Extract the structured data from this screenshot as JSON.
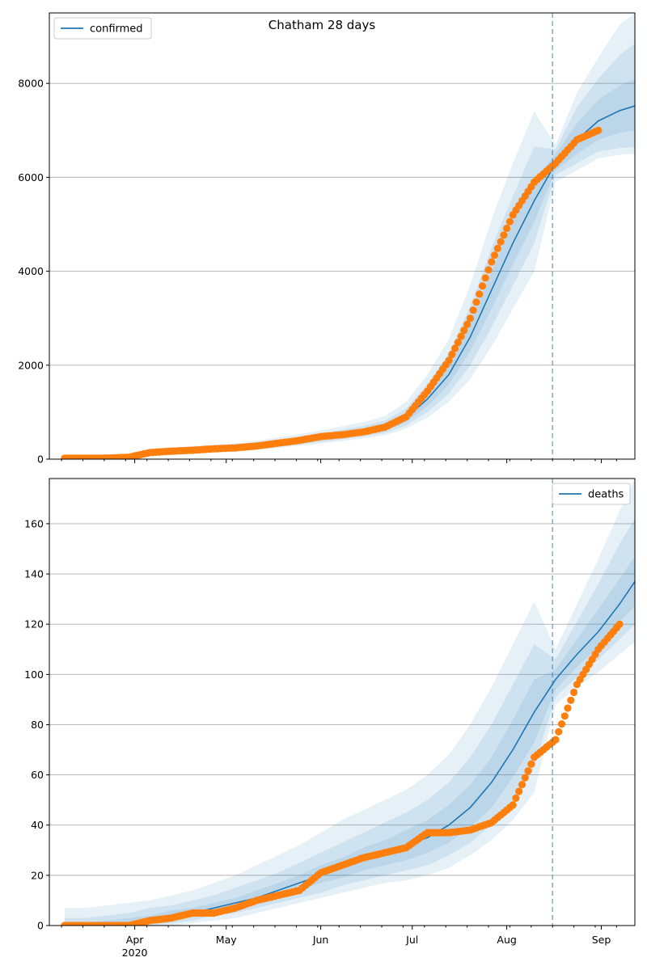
{
  "chart_data": [
    {
      "type": "line",
      "title": "Chatham 28 days",
      "x_dates": [
        "2020-03-09",
        "2020-03-16",
        "2020-03-23",
        "2020-03-30",
        "2020-04-06",
        "2020-04-13",
        "2020-04-20",
        "2020-04-27",
        "2020-05-04",
        "2020-05-11",
        "2020-05-18",
        "2020-05-25",
        "2020-06-01",
        "2020-06-08",
        "2020-06-15",
        "2020-06-22",
        "2020-06-29",
        "2020-07-06",
        "2020-07-13",
        "2020-07-20",
        "2020-07-27",
        "2020-08-03",
        "2020-08-10",
        "2020-08-17",
        "2020-08-24",
        "2020-08-31",
        "2020-09-07",
        "2020-09-12"
      ],
      "xlim": [
        "2020-03-04",
        "2020-09-12"
      ],
      "ylim": [
        0,
        9500
      ],
      "yticks": [
        0,
        2000,
        4000,
        6000,
        8000
      ],
      "xtick_labels": [
        "Apr\n2020",
        "May",
        "Jun",
        "Jul",
        "Aug",
        "Sep"
      ],
      "grid": "horizontal",
      "legend": {
        "position": "top-left"
      },
      "forecast_start": "2020-08-16",
      "series": [
        {
          "name": "confirmed",
          "kind": "model-median",
          "color": "#1f77b4",
          "values": [
            0,
            5,
            20,
            60,
            120,
            160,
            190,
            210,
            240,
            280,
            330,
            390,
            450,
            520,
            590,
            680,
            880,
            1280,
            1800,
            2600,
            3600,
            4600,
            5500,
            6300,
            6800,
            7200,
            7420,
            7520
          ]
        },
        {
          "name": "band_50",
          "kind": "uncertainty",
          "color": "#1f77b4",
          "lower": [
            0,
            4,
            16,
            50,
            100,
            135,
            165,
            185,
            215,
            250,
            295,
            350,
            405,
            470,
            535,
            615,
            790,
            1130,
            1590,
            2300,
            3200,
            4150,
            5050,
            6150,
            6500,
            6800,
            6950,
            7000
          ],
          "upper": [
            0,
            6,
            24,
            70,
            140,
            185,
            215,
            240,
            265,
            310,
            365,
            430,
            495,
            570,
            645,
            745,
            970,
            1430,
            2010,
            2900,
            4000,
            5050,
            5950,
            6500,
            7150,
            7650,
            7950,
            8100
          ]
        },
        {
          "name": "band_80",
          "kind": "uncertainty",
          "color": "#1f77b4",
          "lower": [
            0,
            3,
            13,
            42,
            85,
            115,
            145,
            165,
            190,
            225,
            265,
            315,
            365,
            425,
            485,
            560,
            720,
            1000,
            1400,
            2000,
            2800,
            3700,
            4600,
            6050,
            6300,
            6550,
            6620,
            6650
          ],
          "upper": [
            0,
            8,
            28,
            80,
            160,
            210,
            245,
            270,
            295,
            345,
            405,
            475,
            545,
            625,
            710,
            820,
            1080,
            1600,
            2250,
            3250,
            4500,
            5600,
            6650,
            6600,
            7500,
            8100,
            8600,
            8850
          ]
        },
        {
          "name": "band_95",
          "kind": "uncertainty",
          "color": "#1f77b4",
          "lower": [
            0,
            2,
            10,
            35,
            70,
            95,
            125,
            145,
            170,
            200,
            240,
            285,
            330,
            385,
            440,
            510,
            650,
            880,
            1220,
            1700,
            2400,
            3200,
            4000,
            5900,
            6150,
            6400,
            6480,
            6500
          ],
          "upper": [
            0,
            10,
            34,
            95,
            185,
            240,
            280,
            305,
            335,
            390,
            460,
            535,
            610,
            700,
            790,
            915,
            1220,
            1800,
            2550,
            3700,
            5100,
            6300,
            7400,
            6700,
            7800,
            8550,
            9250,
            9500
          ]
        },
        {
          "name": "observed",
          "kind": "points",
          "color": "#ff7f0e",
          "values": [
            20,
            20,
            22,
            40,
            140,
            170,
            190,
            220,
            240,
            280,
            340,
            400,
            480,
            520,
            580,
            680,
            900,
            1450,
            2100,
            3000,
            4200,
            5200,
            5900,
            6300,
            6800,
            7000,
            null,
            null
          ]
        }
      ]
    },
    {
      "type": "line",
      "x_dates": [
        "2020-03-09",
        "2020-03-16",
        "2020-03-23",
        "2020-03-30",
        "2020-04-06",
        "2020-04-13",
        "2020-04-20",
        "2020-04-27",
        "2020-05-04",
        "2020-05-11",
        "2020-05-18",
        "2020-05-25",
        "2020-06-01",
        "2020-06-08",
        "2020-06-15",
        "2020-06-22",
        "2020-06-29",
        "2020-07-06",
        "2020-07-13",
        "2020-07-20",
        "2020-07-27",
        "2020-08-03",
        "2020-08-10",
        "2020-08-17",
        "2020-08-24",
        "2020-08-31",
        "2020-09-07",
        "2020-09-12"
      ],
      "xlim": [
        "2020-03-04",
        "2020-09-12"
      ],
      "ylim": [
        0,
        178
      ],
      "yticks": [
        0,
        20,
        40,
        60,
        80,
        100,
        120,
        140,
        160
      ],
      "xtick_labels": [
        "Apr\n2020",
        "May",
        "Jun",
        "Jul",
        "Aug",
        "Sep"
      ],
      "grid": "horizontal",
      "legend": {
        "position": "top-right"
      },
      "forecast_start": "2020-08-16",
      "series": [
        {
          "name": "deaths",
          "kind": "model-median",
          "color": "#1f77b4",
          "values": [
            0,
            0,
            0,
            1,
            2,
            4,
            5,
            7,
            9,
            11,
            14,
            17,
            20,
            23,
            26,
            29,
            32,
            35,
            40,
            47,
            57,
            70,
            85,
            98,
            108,
            117,
            128,
            137
          ]
        },
        {
          "name": "band_50",
          "kind": "uncertainty",
          "color": "#1f77b4",
          "lower": [
            0,
            0,
            0,
            0,
            1,
            3,
            4,
            5,
            7,
            9,
            11,
            14,
            17,
            19,
            22,
            24,
            26,
            29,
            33,
            39,
            47,
            59,
            73,
            94,
            103,
            111,
            121,
            127
          ],
          "upper": [
            1,
            1,
            2,
            3,
            4,
            6,
            7,
            9,
            11,
            14,
            17,
            20,
            24,
            27,
            31,
            34,
            38,
            42,
            48,
            56,
            67,
            82,
            98,
            102,
            114,
            126,
            138,
            147
          ]
        },
        {
          "name": "band_80",
          "kind": "uncertainty",
          "color": "#1f77b4",
          "lower": [
            0,
            0,
            0,
            0,
            0,
            1,
            2,
            4,
            5,
            7,
            9,
            11,
            13,
            16,
            18,
            20,
            22,
            24,
            28,
            33,
            40,
            50,
            63,
            91,
            99,
            106,
            114,
            120
          ],
          "upper": [
            3,
            3,
            4,
            5,
            7,
            8,
            10,
            12,
            15,
            18,
            21,
            25,
            29,
            33,
            37,
            41,
            45,
            50,
            57,
            67,
            80,
            96,
            112,
            106,
            121,
            136,
            152,
            162
          ]
        },
        {
          "name": "band_95",
          "kind": "uncertainty",
          "color": "#1f77b4",
          "lower": [
            0,
            0,
            0,
            0,
            0,
            0,
            1,
            2,
            3,
            5,
            7,
            9,
            11,
            13,
            15,
            17,
            18,
            20,
            23,
            28,
            34,
            42,
            53,
            88,
            95,
            101,
            108,
            113
          ],
          "upper": [
            7,
            7,
            8,
            9,
            10,
            12,
            14,
            17,
            20,
            24,
            28,
            32,
            37,
            42,
            46,
            50,
            54,
            60,
            68,
            80,
            95,
            112,
            129,
            110,
            128,
            146,
            165,
            178
          ]
        },
        {
          "name": "observed",
          "kind": "points",
          "color": "#ff7f0e",
          "values": [
            0,
            0,
            0,
            0,
            2,
            3,
            5,
            5,
            7,
            10,
            12,
            14,
            21,
            24,
            27,
            29,
            31,
            37,
            37,
            38,
            41,
            48,
            67,
            74,
            96,
            110,
            120,
            null
          ]
        }
      ]
    }
  ]
}
